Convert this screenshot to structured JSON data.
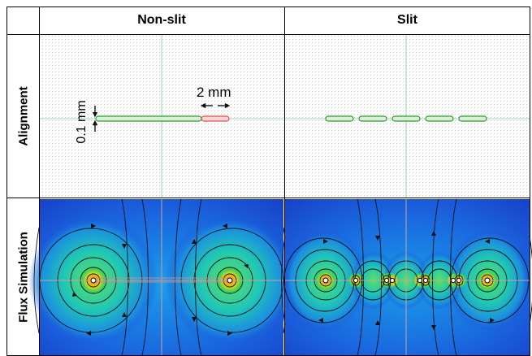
{
  "columns": {
    "left": "Non-slit",
    "right": "Slit"
  },
  "rows": {
    "top": "Alignment",
    "bottom": "Flux Simulation"
  },
  "annotations": {
    "width_label": "2 mm",
    "thickness_label": "0.1 mm"
  },
  "colors": {
    "grid_line": "#000000",
    "trace_green": "#2e9b2e",
    "trace_red": "#e05050",
    "field_bg": "#1a4fd6",
    "field_mid": "#1fc4c4",
    "field_hot": "#f2a02a"
  }
}
